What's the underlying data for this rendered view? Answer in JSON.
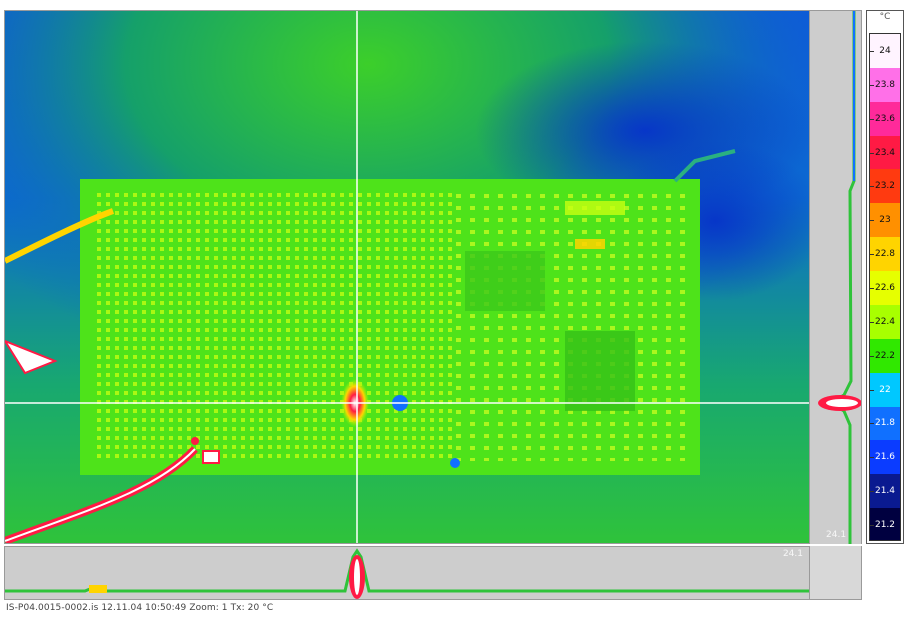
{
  "scale": {
    "unit": "°C",
    "labels": [
      "24",
      "23.8",
      "23.6",
      "23.4",
      "23.2",
      "23",
      "22.8",
      "22.6",
      "22.4",
      "22.2",
      "22",
      "21.8",
      "21.6",
      "21.4",
      "21.2"
    ],
    "colors": [
      "#fff4ff",
      "#ff70e8",
      "#ff2a9a",
      "#ff1a44",
      "#ff3a10",
      "#ff9000",
      "#ffd400",
      "#e6ff00",
      "#a8ff00",
      "#30e800",
      "#00c8ff",
      "#1070ff",
      "#0b3cff",
      "#0a1a90",
      "#000040"
    ]
  },
  "profiles": {
    "horizontal_label": "24.1",
    "vertical_label": "24.1"
  },
  "status": {
    "text": "IS-P04.0015-0002.is  12.11.04  10:50:49   Zoom: 1  Tx: 20 °C"
  },
  "palette": {
    "background_blue": "#0a55e0",
    "board_green": "#4ee31a",
    "hot_red": "#ff1a44",
    "crosshair": "#ffffff",
    "profile_gray": "#cdcdcd"
  }
}
